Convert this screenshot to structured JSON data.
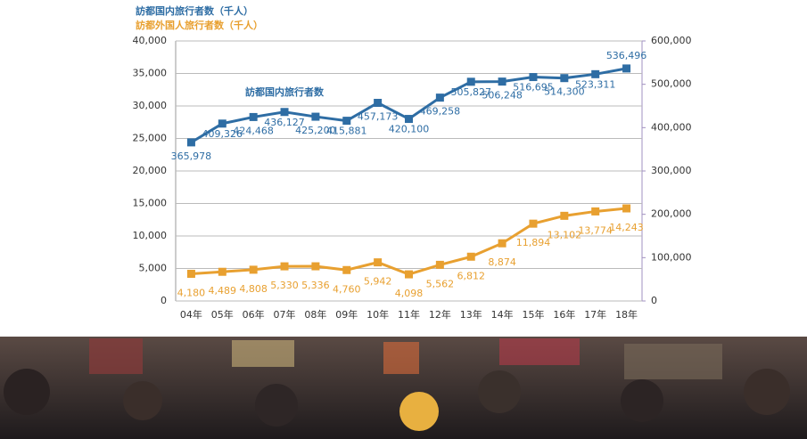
{
  "chart_data": {
    "type": "line",
    "annotation": "訪都国内旅行者数",
    "categories": [
      "04年",
      "05年",
      "06年",
      "07年",
      "08年",
      "09年",
      "10年",
      "11年",
      "12年",
      "13年",
      "14年",
      "15年",
      "16年",
      "17年",
      "18年"
    ],
    "series": [
      {
        "name": "訪都国内旅行者数（千人）",
        "color": "#2e6da4",
        "axis": "y2",
        "values": [
          365978,
          409326,
          424468,
          436127,
          425200,
          415881,
          457173,
          420100,
          469258,
          505827,
          506248,
          516695,
          514300,
          523311,
          536496
        ],
        "value_labels": [
          "365,978",
          "409,326",
          "424,468",
          "436,127",
          "425,200",
          "415,881",
          "457,173",
          "420,100",
          "469,258",
          "505,827",
          "506,248",
          "516,695",
          "514,300",
          "523,311",
          "536,496"
        ]
      },
      {
        "name": "訪都外国人旅行者数（千人）",
        "color": "#e8a030",
        "values": [
          4180,
          4489,
          4808,
          5330,
          5336,
          4760,
          5942,
          4098,
          5562,
          6812,
          8874,
          11894,
          13102,
          13774,
          14243
        ],
        "value_labels": [
          "4,180",
          "4,489",
          "4,808",
          "5,330",
          "5,336",
          "4,760",
          "5,942",
          "4,098",
          "5,562",
          "6,812",
          "8,874",
          "11,894",
          "13,102",
          "13,774",
          "14,243"
        ]
      }
    ],
    "ylim": [
      0,
      40000
    ],
    "yticks": [
      0,
      {
        "value": 5000,
        "label": "5,000"
      },
      {
        "value": 10000,
        "label": "10,000"
      },
      {
        "value": 15000,
        "label": "15,000"
      },
      {
        "value": 20000,
        "label": "20,000"
      },
      {
        "value": 25000,
        "label": "25,000"
      },
      {
        "value": 30000,
        "label": "30,000"
      },
      {
        "value": 35000,
        "label": "35,000"
      },
      {
        "value": 40000,
        "label": "40,000"
      }
    ],
    "y2lim": [
      0,
      600000
    ],
    "y2ticks": [
      0,
      {
        "value": 100000,
        "label": "100,000"
      },
      {
        "value": 200000,
        "label": "200,000"
      },
      {
        "value": 300000,
        "label": "300,000"
      },
      {
        "value": 400000,
        "label": "400,000"
      },
      {
        "value": 500000,
        "label": "500,000"
      },
      {
        "value": 600000,
        "label": "600,000"
      }
    ],
    "grid": true
  }
}
